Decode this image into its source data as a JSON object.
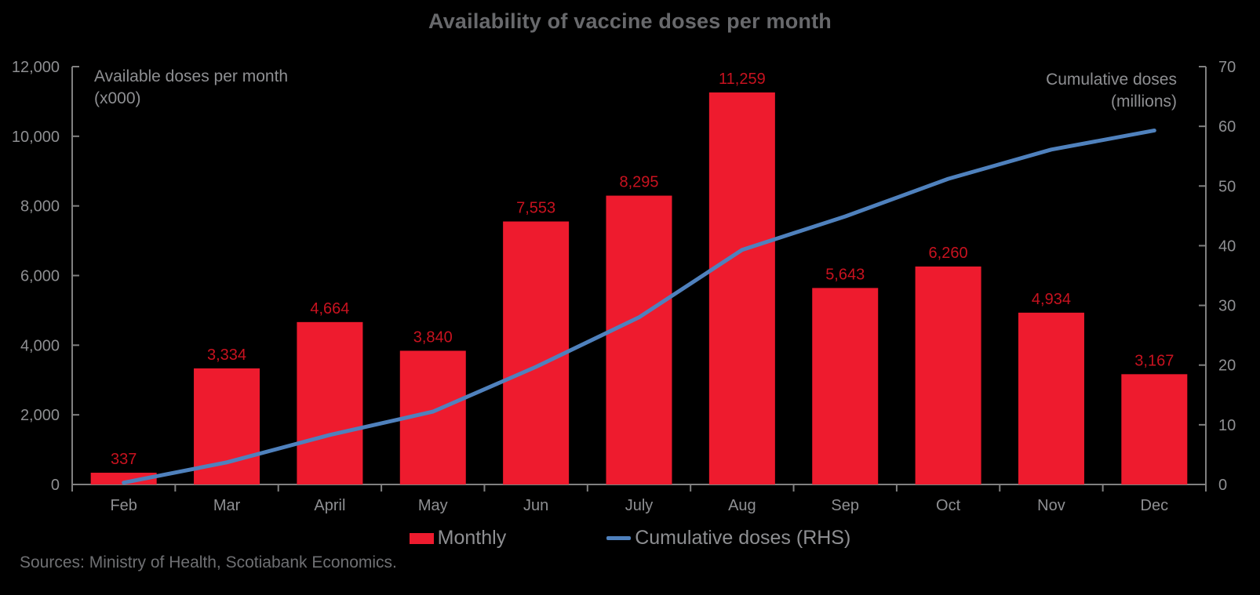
{
  "chart_data": {
    "type": "bar+line",
    "title": "Availability of vaccine doses per month",
    "source": "Sources: Ministry of Health, Scotiabank Economics.",
    "categories": [
      "Feb",
      "Mar",
      "April",
      "May",
      "Jun",
      "July",
      "Aug",
      "Sep",
      "Oct",
      "Nov",
      "Dec"
    ],
    "series": [
      {
        "name": "Monthly",
        "type": "bar",
        "axis": "left",
        "values": [
          337,
          3334,
          4664,
          3840,
          7553,
          8295,
          11259,
          5643,
          6260,
          4934,
          3167
        ],
        "labels": [
          "337",
          "3,334",
          "4,664",
          "3,840",
          "7,553",
          "8,295",
          "11,259",
          "5,643",
          "6,260",
          "4,934",
          "3,167"
        ]
      },
      {
        "name": "Cumulative doses (RHS)",
        "type": "line",
        "axis": "right",
        "values": [
          0.3,
          3.7,
          8.3,
          12.2,
          19.7,
          28.0,
          39.3,
          44.9,
          51.2,
          56.1,
          59.3
        ]
      }
    ],
    "left_axis": {
      "title_line1": "Available doses per month",
      "title_line2": "(x000)",
      "min": 0,
      "max": 12000,
      "ticks": [
        {
          "value": 0,
          "label": "0"
        },
        {
          "value": 2000,
          "label": "2,000"
        },
        {
          "value": 4000,
          "label": "4,000"
        },
        {
          "value": 6000,
          "label": "6,000"
        },
        {
          "value": 8000,
          "label": "8,000"
        },
        {
          "value": 10000,
          "label": "10,000"
        },
        {
          "value": 12000,
          "label": "12,000"
        }
      ]
    },
    "right_axis": {
      "title_line1": "Cumulative doses",
      "title_line2": "(millions)",
      "min": 0,
      "max": 70,
      "ticks": [
        {
          "value": 0,
          "label": "0"
        },
        {
          "value": 10,
          "label": "10"
        },
        {
          "value": 20,
          "label": "20"
        },
        {
          "value": 30,
          "label": "30"
        },
        {
          "value": 40,
          "label": "40"
        },
        {
          "value": 50,
          "label": "50"
        },
        {
          "value": 60,
          "label": "60"
        },
        {
          "value": 70,
          "label": "70"
        }
      ]
    },
    "legend": [
      {
        "label": "Monthly",
        "type": "bar"
      },
      {
        "label": "Cumulative doses (RHS)",
        "type": "line"
      }
    ],
    "grid": false,
    "legend_position": "bottom-center",
    "colors": {
      "bar": "#EE1B2E",
      "bar_label": "#C8121F",
      "line": "#4F81BD",
      "axis_line": "#808080",
      "tick_text": "#8E8F92",
      "title_text": "#68696C",
      "background": "#000000"
    }
  }
}
